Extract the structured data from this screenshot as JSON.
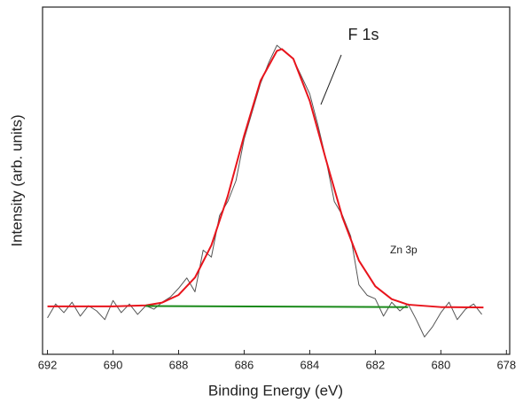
{
  "chart_data": {
    "type": "line",
    "x_label": "Binding Energy (eV)",
    "y_label": "Intensity (arb. units)",
    "annotations": [
      "F 1s",
      "Zn 3p"
    ],
    "xlim": [
      692.15,
      677.9
    ],
    "xticks": [
      692,
      690,
      688,
      686,
      684,
      682,
      680,
      678
    ],
    "ylim": [
      0,
      100
    ],
    "series": [
      {
        "color": "#555555",
        "x": [
          692,
          691.75,
          691.5,
          691.25,
          691,
          690.75,
          690.5,
          690.25,
          690,
          689.75,
          689.5,
          689.25,
          689,
          688.75,
          688.5,
          688.25,
          688,
          687.75,
          687.5,
          687.25,
          687,
          686.75,
          686.5,
          686.25,
          686,
          685.75,
          685.5,
          685.25,
          685,
          684.75,
          684.5,
          684.25,
          684,
          683.75,
          683.5,
          683.25,
          683,
          682.75,
          682.5,
          682.25,
          682,
          681.75,
          681.5,
          681.25,
          681,
          680.75,
          680.5,
          680.25,
          680,
          679.75,
          679.5,
          679.25,
          679,
          678.75
        ],
        "values": [
          10.5,
          14.5,
          12,
          15,
          11,
          14,
          12.5,
          10,
          15.5,
          12,
          14.5,
          11.5,
          14,
          13,
          15,
          16.5,
          19,
          22,
          18,
          30,
          28,
          40,
          44,
          50,
          62,
          70,
          78,
          84,
          89,
          87,
          85,
          80,
          75,
          66,
          56,
          44,
          40,
          34,
          20,
          17,
          16,
          11,
          15,
          12.5,
          14.5,
          10,
          5,
          8,
          12,
          15,
          10,
          13,
          14.5,
          11.5
        ]
      },
      {
        "color": "#e8141c",
        "x": [
          692,
          690,
          689,
          688.5,
          688,
          687.5,
          687,
          686.5,
          686,
          685.5,
          685,
          684.85,
          684.5,
          684,
          683.5,
          683,
          682.5,
          682,
          681.5,
          681,
          680,
          678.7
        ],
        "values": [
          13.8,
          13.8,
          14.1,
          14.9,
          17.1,
          22.1,
          31.4,
          45.6,
          63.0,
          78.8,
          87.4,
          87.9,
          85.1,
          73.0,
          55.9,
          39.4,
          27.0,
          19.6,
          15.9,
          14.3,
          13.6,
          13.5
        ]
      },
      {
        "color": "#1a8a1a",
        "x": [
          689,
          681
        ],
        "values": [
          13.9,
          13.6
        ]
      }
    ]
  }
}
